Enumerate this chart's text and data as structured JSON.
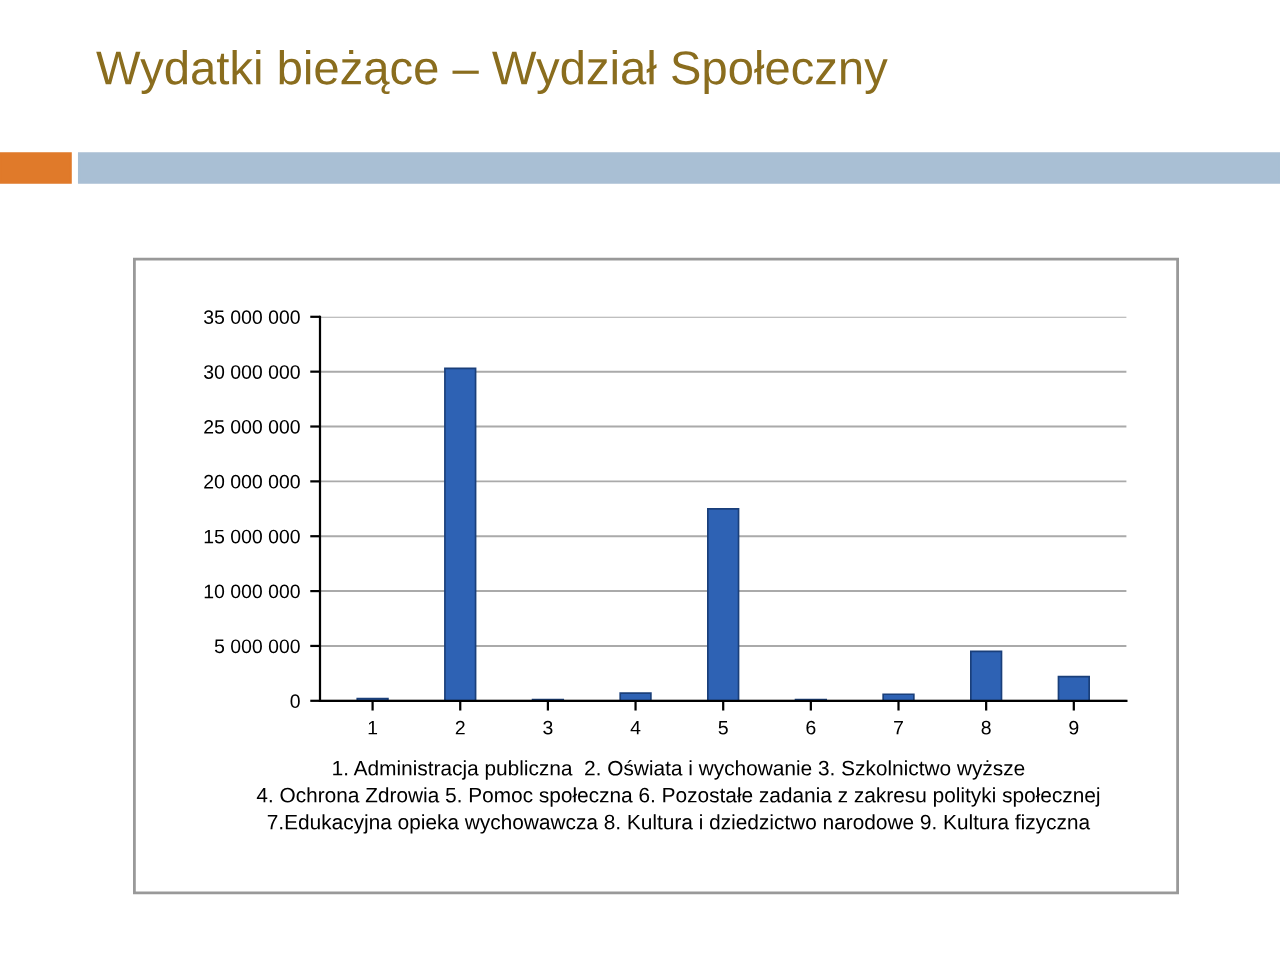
{
  "chart_data": {
    "type": "bar",
    "title": "Wydatki bieżące – Wydział Społeczny",
    "categories": [
      "1",
      "2",
      "3",
      "4",
      "5",
      "6",
      "7",
      "8",
      "9"
    ],
    "values": [
      200000,
      30300000,
      100000,
      700000,
      17500000,
      100000,
      600000,
      4500000,
      2200000
    ],
    "color": "#2e62b4",
    "ylim": [
      0,
      35000000
    ],
    "yticks": [
      {
        "value": 0,
        "label": "0"
      },
      {
        "value": 5000000,
        "label": "5 000 000"
      },
      {
        "value": 10000000,
        "label": "10 000 000"
      },
      {
        "value": 15000000,
        "label": "15 000 000"
      },
      {
        "value": 20000000,
        "label": "20 000 000"
      },
      {
        "value": 25000000,
        "label": "25 000 000"
      },
      {
        "value": 30000000,
        "label": "30 000 000"
      },
      {
        "value": 35000000,
        "label": "35 000 000"
      }
    ],
    "grid": "y",
    "annotations": [
      "1. Administracja publiczna  2. Oświata i wychowanie 3. Szkolnictwo wyższe\n4. Ochrona Zdrowia 5. Pomoc społeczna 6. Pozostałe zadania z zakresu polityki społecznej\n7.Edukacyjna opieka wychowawcza 8. Kultura i dziedzictwo narodowe 9. Kultura fizyczna"
    ]
  }
}
